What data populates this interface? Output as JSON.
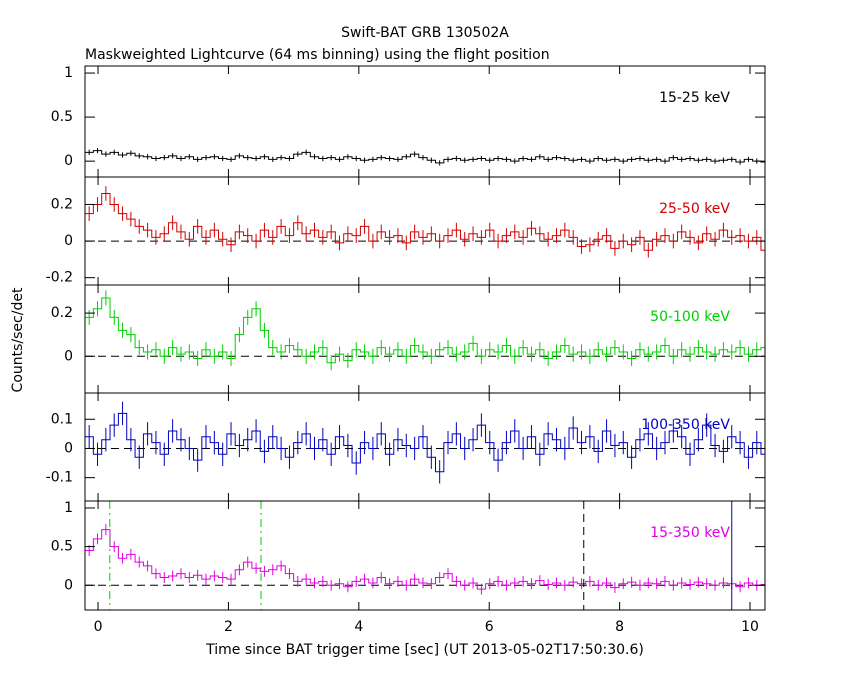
{
  "figure": {
    "title": "Swift-BAT GRB 130502A",
    "subtitle": "Maskweighted Lightcurve (64 ms binning) using the flight position",
    "y_label": "Counts/sec/det",
    "x_label": "Time since BAT trigger time [sec] (UT 2013-05-02T17:50:30.6)",
    "xlim": [
      -0.2,
      10.23
    ],
    "xticks": [
      0,
      2,
      4,
      6,
      8,
      10
    ],
    "bin_width": 0.128,
    "x": [
      -0.2,
      -0.072,
      0.056,
      0.184,
      0.312,
      0.44,
      0.568,
      0.696,
      0.824,
      0.952,
      1.08,
      1.208,
      1.336,
      1.464,
      1.592,
      1.72,
      1.848,
      1.976,
      2.104,
      2.232,
      2.36,
      2.488,
      2.616,
      2.744,
      2.872,
      3.0,
      3.128,
      3.256,
      3.384,
      3.512,
      3.64,
      3.768,
      3.896,
      4.024,
      4.152,
      4.28,
      4.408,
      4.536,
      4.664,
      4.792,
      4.92,
      5.048,
      5.176,
      5.304,
      5.432,
      5.56,
      5.688,
      5.816,
      5.944,
      6.072,
      6.2,
      6.328,
      6.456,
      6.584,
      6.712,
      6.84,
      6.968,
      7.096,
      7.224,
      7.352,
      7.48,
      7.608,
      7.736,
      7.864,
      7.992,
      8.12,
      8.248,
      8.376,
      8.504,
      8.632,
      8.76,
      8.888,
      9.016,
      9.144,
      9.272,
      9.4,
      9.528,
      9.656,
      9.784,
      9.912,
      10.04,
      10.168
    ]
  },
  "chart_data": [
    {
      "type": "step",
      "label": "15-25 keV",
      "color": "#000000",
      "ylim": [
        -0.18,
        1.08
      ],
      "yticks": [
        0,
        0.5,
        1
      ],
      "error": 0.03,
      "values": [
        0.1,
        0.12,
        0.08,
        0.1,
        0.07,
        0.09,
        0.06,
        0.05,
        0.03,
        0.04,
        0.06,
        0.03,
        0.05,
        0.02,
        0.04,
        0.05,
        0.03,
        0.02,
        0.06,
        0.04,
        0.03,
        0.05,
        0.02,
        0.04,
        0.03,
        0.08,
        0.1,
        0.05,
        0.03,
        0.04,
        0.02,
        0.05,
        0.03,
        0.01,
        0.02,
        0.04,
        0.03,
        0.02,
        0.05,
        0.08,
        0.04,
        0.01,
        -0.02,
        0.02,
        0.03,
        0.01,
        0.02,
        0.03,
        0.01,
        0.03,
        0.02,
        0.0,
        0.03,
        0.02,
        0.05,
        0.02,
        0.04,
        0.03,
        0.01,
        0.02,
        0.0,
        0.03,
        0.01,
        0.02,
        0.0,
        0.02,
        0.03,
        0.01,
        0.02,
        0.0,
        0.04,
        0.02,
        0.03,
        0.01,
        0.02,
        0.0,
        0.01,
        0.02,
        -0.01,
        0.02,
        0.0,
        -0.01
      ]
    },
    {
      "type": "step",
      "label": "25-50 keV",
      "color": "#d00000",
      "ylim": [
        -0.24,
        0.35
      ],
      "yticks": [
        -0.2,
        0,
        0.2
      ],
      "error": 0.04,
      "hline": 0,
      "values": [
        0.15,
        0.2,
        0.26,
        0.2,
        0.15,
        0.12,
        0.08,
        0.06,
        0.02,
        0.04,
        0.1,
        0.05,
        0.01,
        0.08,
        0.02,
        0.06,
        0.01,
        -0.02,
        0.05,
        0.03,
        0.0,
        0.06,
        0.02,
        0.08,
        0.03,
        0.1,
        0.04,
        0.06,
        0.02,
        0.05,
        -0.01,
        0.04,
        0.03,
        0.08,
        0.0,
        0.05,
        0.02,
        0.03,
        -0.01,
        0.05,
        0.02,
        0.04,
        0.0,
        0.03,
        0.06,
        0.01,
        0.04,
        0.02,
        0.06,
        0.0,
        0.03,
        0.05,
        0.02,
        0.07,
        0.04,
        0.01,
        0.03,
        0.06,
        0.02,
        -0.03,
        -0.02,
        0.01,
        0.03,
        -0.04,
        0.0,
        -0.02,
        0.02,
        -0.05,
        0.01,
        0.03,
        0.0,
        0.05,
        0.02,
        -0.01,
        0.04,
        0.01,
        0.06,
        0.02,
        0.03,
        0.0,
        0.02,
        -0.05
      ]
    },
    {
      "type": "step",
      "label": "50-100 keV",
      "color": "#00d000",
      "ylim": [
        -0.17,
        0.33
      ],
      "yticks": [
        0,
        0.2
      ],
      "error": 0.035,
      "hline": 0,
      "values": [
        0.18,
        0.22,
        0.27,
        0.18,
        0.12,
        0.1,
        0.04,
        0.02,
        0.03,
        0.0,
        0.04,
        0.01,
        0.02,
        -0.01,
        0.03,
        0.0,
        0.02,
        -0.01,
        0.1,
        0.18,
        0.22,
        0.12,
        0.04,
        0.02,
        0.05,
        0.03,
        0.0,
        0.02,
        0.04,
        -0.03,
        0.01,
        -0.02,
        0.03,
        0.02,
        0.0,
        0.04,
        0.01,
        0.03,
        0.0,
        0.05,
        0.02,
        0.0,
        0.03,
        0.04,
        0.01,
        0.02,
        0.06,
        0.0,
        0.03,
        0.02,
        0.05,
        0.0,
        0.04,
        0.01,
        0.03,
        -0.01,
        0.02,
        0.05,
        0.01,
        0.02,
        0.0,
        0.03,
        0.01,
        0.04,
        0.02,
        -0.01,
        0.03,
        0.01,
        0.02,
        0.05,
        0.0,
        0.03,
        0.01,
        0.04,
        0.02,
        0.01,
        0.03,
        0.02,
        0.04,
        0.01,
        0.03,
        0.04
      ]
    },
    {
      "type": "step",
      "label": "100-350 keV",
      "color": "#0000c0",
      "ylim": [
        -0.18,
        0.19
      ],
      "yticks": [
        -0.1,
        0,
        0.1
      ],
      "error": 0.04,
      "hline": 0,
      "values": [
        0.04,
        -0.02,
        0.03,
        0.08,
        0.12,
        0.03,
        -0.03,
        0.05,
        0.02,
        -0.02,
        0.06,
        0.03,
        0.0,
        -0.04,
        0.04,
        0.02,
        -0.02,
        0.05,
        0.01,
        0.03,
        0.06,
        -0.01,
        0.04,
        0.0,
        -0.03,
        0.02,
        0.05,
        0.0,
        0.03,
        -0.02,
        0.04,
        0.01,
        -0.05,
        0.02,
        0.0,
        0.05,
        -0.02,
        0.03,
        0.01,
        0.0,
        0.04,
        -0.03,
        -0.08,
        0.02,
        0.05,
        0.0,
        0.03,
        0.08,
        0.02,
        -0.04,
        0.02,
        0.06,
        0.0,
        0.04,
        -0.02,
        0.05,
        0.03,
        0.0,
        0.07,
        0.02,
        0.04,
        -0.01,
        0.06,
        0.01,
        0.02,
        -0.03,
        0.03,
        0.05,
        0.0,
        0.02,
        0.06,
        0.04,
        -0.02,
        0.03,
        0.08,
        0.01,
        -0.01,
        0.04,
        0.02,
        -0.03,
        0.02,
        -0.02
      ]
    },
    {
      "type": "step",
      "label": "15-350 keV",
      "color": "#e000e0",
      "ylim": [
        -0.32,
        1.09
      ],
      "yticks": [
        0,
        0.5,
        1
      ],
      "error": 0.07,
      "hline": 0,
      "values": [
        0.45,
        0.6,
        0.72,
        0.5,
        0.35,
        0.4,
        0.3,
        0.25,
        0.15,
        0.1,
        0.12,
        0.15,
        0.1,
        0.13,
        0.08,
        0.12,
        0.1,
        0.08,
        0.2,
        0.3,
        0.22,
        0.18,
        0.2,
        0.25,
        0.15,
        0.05,
        0.08,
        0.03,
        0.05,
        0.0,
        0.02,
        -0.02,
        0.05,
        0.08,
        0.03,
        0.1,
        0.02,
        0.05,
        0.0,
        0.08,
        0.03,
        0.02,
        0.1,
        0.15,
        0.05,
        0.0,
        0.03,
        -0.05,
        0.02,
        0.05,
        0.0,
        0.03,
        0.05,
        0.02,
        0.06,
        0.01,
        0.03,
        0.0,
        0.04,
        0.02,
        0.05,
        0.0,
        0.03,
        -0.03,
        0.02,
        0.04,
        0.0,
        0.03,
        0.02,
        0.05,
        0.0,
        0.03,
        0.01,
        0.04,
        0.02,
        0.0,
        0.03,
        0.02,
        -0.02,
        0.03,
        0.0,
        0.01
      ],
      "vlines": [
        {
          "x": 0.18,
          "color": "#00d000",
          "style": "dashdot"
        },
        {
          "x": 2.5,
          "color": "#00d000",
          "style": "dashdot"
        },
        {
          "x": 7.45,
          "color": "#000000",
          "style": "dashed"
        },
        {
          "x": 9.72,
          "color": "#0000c0",
          "style": "solid"
        }
      ]
    }
  ]
}
